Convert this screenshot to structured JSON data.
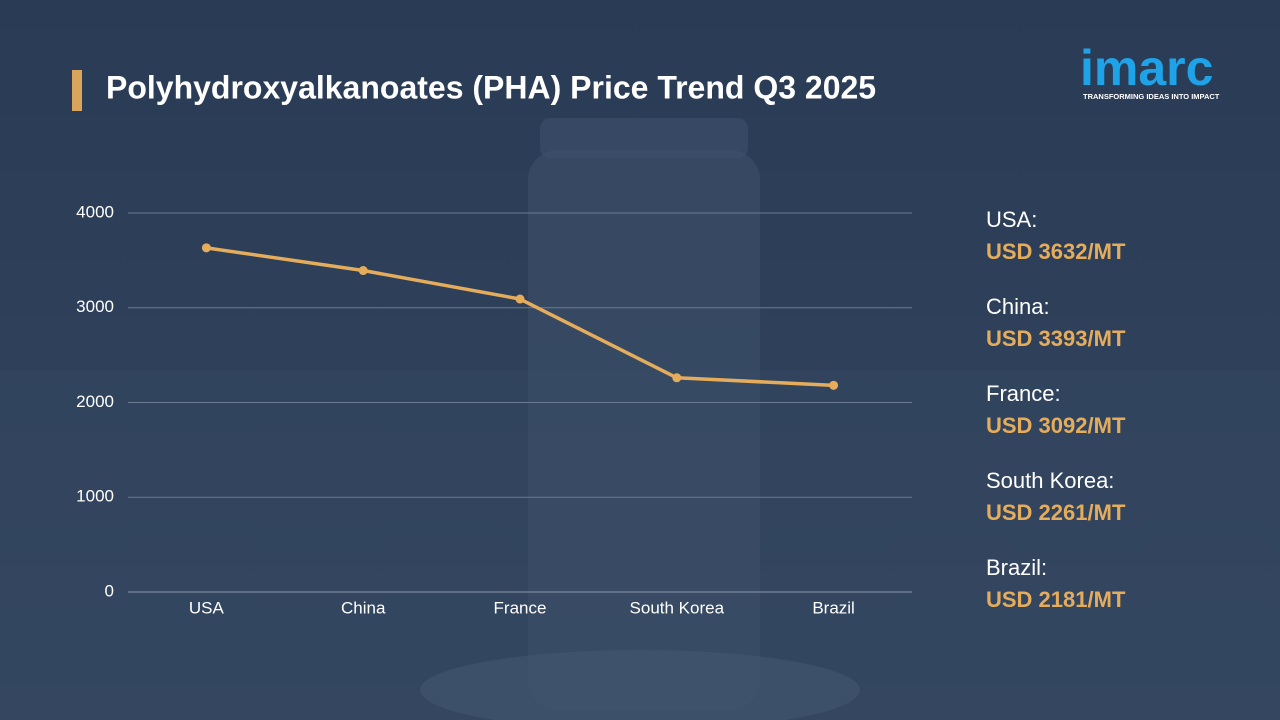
{
  "chart_data": {
    "type": "line",
    "title": "Polyhydroxyalkanoates (PHA) Price Trend Q3 2025",
    "categories": [
      "USA",
      "China",
      "France",
      "South Korea",
      "Brazil"
    ],
    "values": [
      3632,
      3393,
      3092,
      2261,
      2181
    ],
    "value_labels": [
      "USD 3632/MT",
      "USD 3393/MT",
      "USD 3092/MT",
      "USD 2261/MT",
      "USD 2181/MT"
    ],
    "side_labels": [
      "USA:",
      "China:",
      "France:",
      "South Korea:",
      "Brazil:"
    ],
    "color": "#e5ad5b",
    "ylim": [
      0,
      4000
    ],
    "yticks": [
      0,
      1000,
      2000,
      3000,
      4000
    ],
    "grid": true
  },
  "logo": {
    "text": "imarc",
    "tagline": "TRANSFORMING IDEAS INTO IMPACT"
  }
}
